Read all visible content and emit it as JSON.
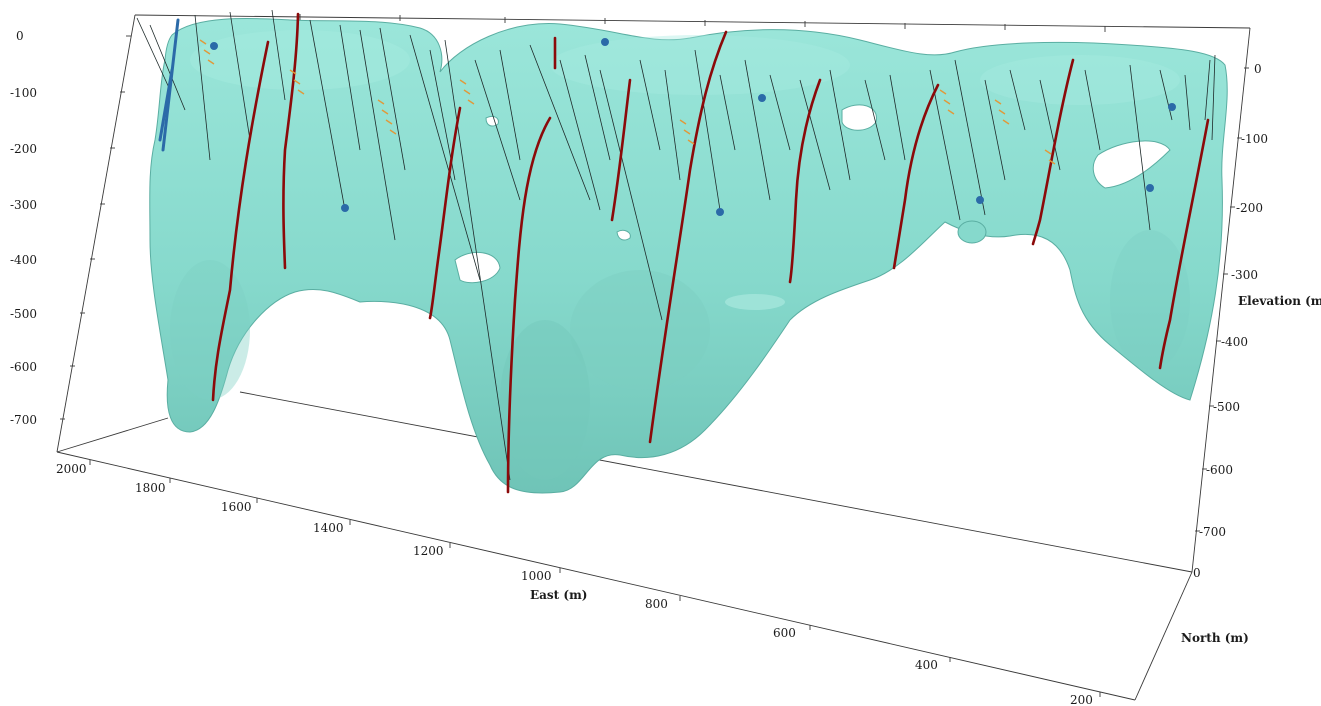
{
  "colors": {
    "orebody_fill": "#8fe0d3",
    "orebody_shade": "#6cc2b5",
    "orebody_edge": "#5aaea2",
    "drillhole": "#1e2a2a",
    "highlight_drillhole": "#8b0a0a",
    "sample_orange": "#e09a3a",
    "sample_blue": "#2b6aa8",
    "axis_line": "#3a3a3a",
    "axis_text": "#1a1a1a"
  },
  "axes": {
    "elevation_left": {
      "ticks": [
        "0",
        "-100",
        "-200",
        "-300",
        "-400",
        "-500",
        "-600",
        "-700"
      ]
    },
    "elevation_right": {
      "title": "Elevation (m)",
      "ticks": [
        "0",
        "-100",
        "-200",
        "-300",
        "-400",
        "-500",
        "-600",
        "-700"
      ]
    },
    "east": {
      "title": "East (m)",
      "ticks": [
        "2000",
        "1800",
        "1600",
        "1400",
        "1200",
        "1000",
        "800",
        "600",
        "400",
        "200"
      ]
    },
    "north": {
      "title": "North (m)",
      "ticks": [
        "0"
      ]
    }
  }
}
